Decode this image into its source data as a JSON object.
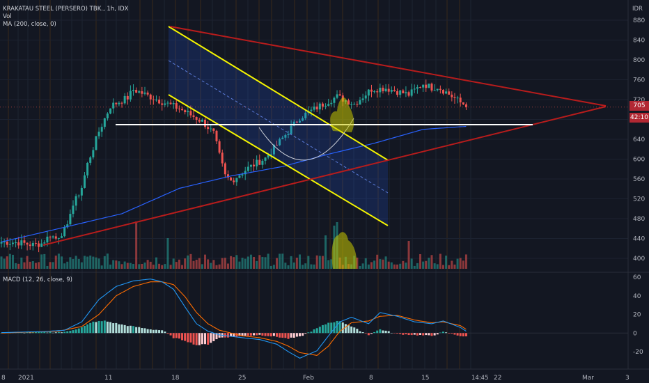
{
  "header": {
    "symbol_title": "KRAKATAU STEEL (PERSERO) TBK., 1h, IDX",
    "currency": "IDR",
    "vol_label": "Vol",
    "ma_label": "MA (200, close, 0)",
    "macd_label": "MACD (12, 26, close, 9)"
  },
  "price_tags": {
    "price": "705",
    "countdown": "42:10"
  },
  "time_label": "14:45",
  "colors": {
    "background": "#131722",
    "up": "#26a69a",
    "down": "#ef5350",
    "ma": "#2962ff",
    "macd": "#2196f3",
    "signal": "#ff6d00",
    "channel": "#f5f500",
    "triangle": "#b71c1c",
    "support": "#ffffff"
  },
  "chart_data": [
    {
      "type": "candlestick",
      "title": "KRAKATAU STEEL (PERSERO) TBK., 1h, IDX",
      "y_ticks": [
        "880",
        "840",
        "800",
        "760",
        "720",
        "680",
        "640",
        "600",
        "560",
        "520",
        "480",
        "440",
        "400"
      ],
      "ylim": [
        385,
        890
      ],
      "x_ticks": [
        "8",
        "2021",
        "11",
        "18",
        "25",
        "Feb",
        "8",
        "15",
        "22",
        "Mar",
        "3"
      ],
      "last_price": 705,
      "price_path": [
        [
          0,
          433
        ],
        [
          6,
          432
        ],
        [
          11,
          427
        ],
        [
          14,
          430
        ],
        [
          17,
          447
        ],
        [
          19,
          440
        ],
        [
          23,
          462
        ],
        [
          24,
          495
        ],
        [
          28,
          543
        ],
        [
          30,
          590
        ],
        [
          34,
          656
        ],
        [
          38,
          707
        ],
        [
          44,
          724
        ],
        [
          46,
          740
        ],
        [
          49,
          733
        ],
        [
          55,
          718
        ],
        [
          62,
          702
        ],
        [
          70,
          676
        ],
        [
          74,
          652
        ],
        [
          76,
          607
        ],
        [
          78,
          566
        ],
        [
          80,
          556
        ],
        [
          86,
          582
        ],
        [
          92,
          602
        ],
        [
          98,
          642
        ],
        [
          104,
          684
        ],
        [
          113,
          714
        ],
        [
          117,
          726
        ],
        [
          123,
          711
        ],
        [
          129,
          741
        ],
        [
          134,
          743
        ],
        [
          142,
          730
        ],
        [
          147,
          752
        ],
        [
          150,
          744
        ],
        [
          152,
          746
        ],
        [
          155,
          735
        ],
        [
          160,
          714
        ],
        [
          162,
          709
        ]
      ],
      "volume_spikes": [
        [
          47,
          68
        ],
        [
          58,
          44
        ],
        [
          113,
          48
        ],
        [
          116,
          62
        ],
        [
          117,
          67
        ],
        [
          142,
          40
        ]
      ],
      "ma200": [
        [
          0,
          433
        ],
        [
          20,
          460
        ],
        [
          42,
          490
        ],
        [
          62,
          541
        ],
        [
          80,
          566
        ],
        [
          98,
          585
        ],
        [
          114,
          610
        ],
        [
          130,
          632
        ],
        [
          147,
          660
        ],
        [
          162,
          666
        ]
      ],
      "drawings": {
        "channel_upper": [
          [
            242,
            38
          ],
          [
            557,
            230
          ]
        ],
        "channel_lower": [
          [
            242,
            136
          ],
          [
            557,
            324
          ]
        ],
        "channel_mid": [
          [
            242,
            87
          ],
          [
            557,
            277
          ]
        ],
        "triangle_upper": [
          [
            244,
            38
          ],
          [
            870,
            152
          ]
        ],
        "triangle_lower": [
          [
            62,
            352
          ],
          [
            870,
            153
          ]
        ],
        "support_line": [
          [
            166,
            179
          ],
          [
            765,
            179
          ]
        ],
        "cup_arc": [
          [
            372,
            183
          ],
          [
            440,
            262
          ],
          [
            508,
            170
          ]
        ]
      }
    },
    {
      "type": "line",
      "title": "MACD (12, 26, close, 9)",
      "y_ticks": [
        "60",
        "40",
        "20",
        "0",
        "-20"
      ],
      "ylim": [
        -30,
        63
      ],
      "macd": [
        [
          0,
          0.5
        ],
        [
          14,
          1.5
        ],
        [
          22,
          3
        ],
        [
          28,
          12
        ],
        [
          34,
          36
        ],
        [
          40,
          50
        ],
        [
          46,
          56
        ],
        [
          52,
          58
        ],
        [
          56,
          55
        ],
        [
          60,
          47
        ],
        [
          64,
          28
        ],
        [
          68,
          10
        ],
        [
          72,
          2
        ],
        [
          76,
          -2
        ],
        [
          84,
          -5
        ],
        [
          90,
          -7
        ],
        [
          96,
          -12
        ],
        [
          100,
          -20
        ],
        [
          104,
          -27
        ],
        [
          110,
          -19
        ],
        [
          114,
          -3
        ],
        [
          118,
          12
        ],
        [
          122,
          17
        ],
        [
          128,
          10
        ],
        [
          132,
          22
        ],
        [
          138,
          18
        ],
        [
          144,
          12
        ],
        [
          150,
          10
        ],
        [
          154,
          13
        ],
        [
          160,
          6
        ],
        [
          162,
          2
        ]
      ],
      "signal": [
        [
          0,
          0
        ],
        [
          20,
          2
        ],
        [
          28,
          7
        ],
        [
          34,
          20
        ],
        [
          40,
          40
        ],
        [
          46,
          50
        ],
        [
          52,
          55
        ],
        [
          56,
          55
        ],
        [
          60,
          52
        ],
        [
          64,
          39
        ],
        [
          68,
          22
        ],
        [
          72,
          10
        ],
        [
          76,
          3
        ],
        [
          84,
          -3
        ],
        [
          90,
          -5
        ],
        [
          96,
          -9
        ],
        [
          100,
          -14
        ],
        [
          104,
          -21
        ],
        [
          110,
          -24
        ],
        [
          114,
          -14
        ],
        [
          118,
          2
        ],
        [
          122,
          11
        ],
        [
          128,
          13
        ],
        [
          132,
          18
        ],
        [
          138,
          19
        ],
        [
          144,
          14
        ],
        [
          150,
          11
        ],
        [
          154,
          12
        ],
        [
          160,
          8
        ],
        [
          162,
          4
        ]
      ],
      "histogram": [
        [
          0,
          0.5
        ],
        [
          22,
          1
        ],
        [
          28,
          6
        ],
        [
          32,
          12
        ],
        [
          36,
          13
        ],
        [
          42,
          9
        ],
        [
          48,
          6
        ],
        [
          52,
          4
        ],
        [
          56,
          3
        ],
        [
          60,
          -5
        ],
        [
          64,
          -8
        ],
        [
          68,
          -13
        ],
        [
          72,
          -12
        ],
        [
          76,
          -5
        ],
        [
          84,
          -3
        ],
        [
          90,
          -2
        ],
        [
          96,
          -4
        ],
        [
          100,
          -6
        ],
        [
          104,
          -4
        ],
        [
          110,
          5
        ],
        [
          114,
          11
        ],
        [
          118,
          13
        ],
        [
          122,
          7
        ],
        [
          128,
          -2
        ],
        [
          132,
          4
        ],
        [
          138,
          -1
        ],
        [
          144,
          -2
        ],
        [
          150,
          -3
        ],
        [
          154,
          1
        ],
        [
          160,
          -3
        ],
        [
          162,
          -4
        ]
      ]
    }
  ]
}
